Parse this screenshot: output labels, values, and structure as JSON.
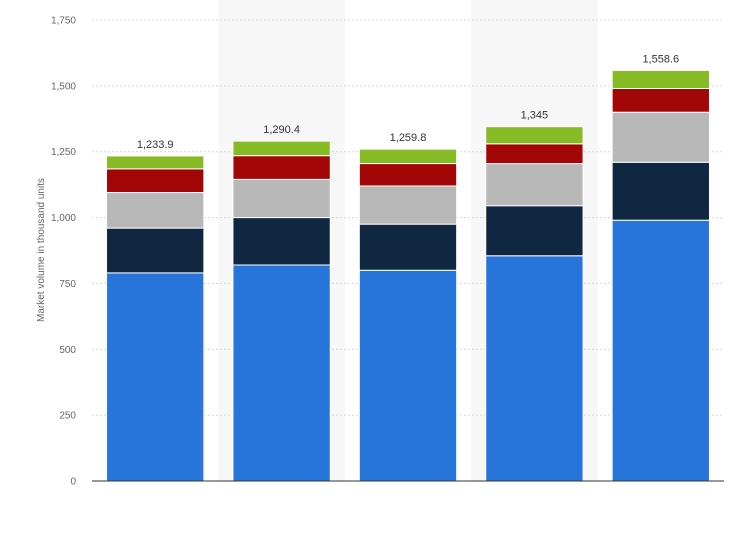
{
  "chart_data": {
    "type": "bar",
    "stacked": true,
    "title": "",
    "xlabel": "",
    "ylabel": "Market volume in thousand units",
    "ylim": [
      0,
      1750
    ],
    "yticks": [
      0,
      250,
      500,
      750,
      1000,
      1250,
      1500,
      1750
    ],
    "ytick_labels": [
      "0",
      "250",
      "500",
      "750",
      "1,000",
      "1,250",
      "1,500",
      "1,750"
    ],
    "grid": true,
    "categories": [
      "",
      "",
      "",
      "",
      ""
    ],
    "series": [
      {
        "color": "#2775db",
        "values": [
          790,
          820,
          800,
          855,
          990
        ]
      },
      {
        "color": "#0f2740",
        "values": [
          170,
          180,
          175,
          190,
          220
        ]
      },
      {
        "color": "#b8b8b8",
        "values": [
          135,
          145,
          145,
          160,
          190
        ]
      },
      {
        "color": "#a20606",
        "values": [
          90,
          90,
          85,
          75,
          90
        ]
      },
      {
        "color": "#86bb25",
        "values": [
          48.9,
          55.4,
          54.8,
          65,
          68.6
        ]
      }
    ],
    "totals": [
      1233.9,
      1290.4,
      1259.8,
      1345,
      1558.6
    ],
    "total_labels": [
      "1,233.9",
      "1,290.4",
      "1,259.8",
      "1,345",
      "1,558.6"
    ]
  }
}
